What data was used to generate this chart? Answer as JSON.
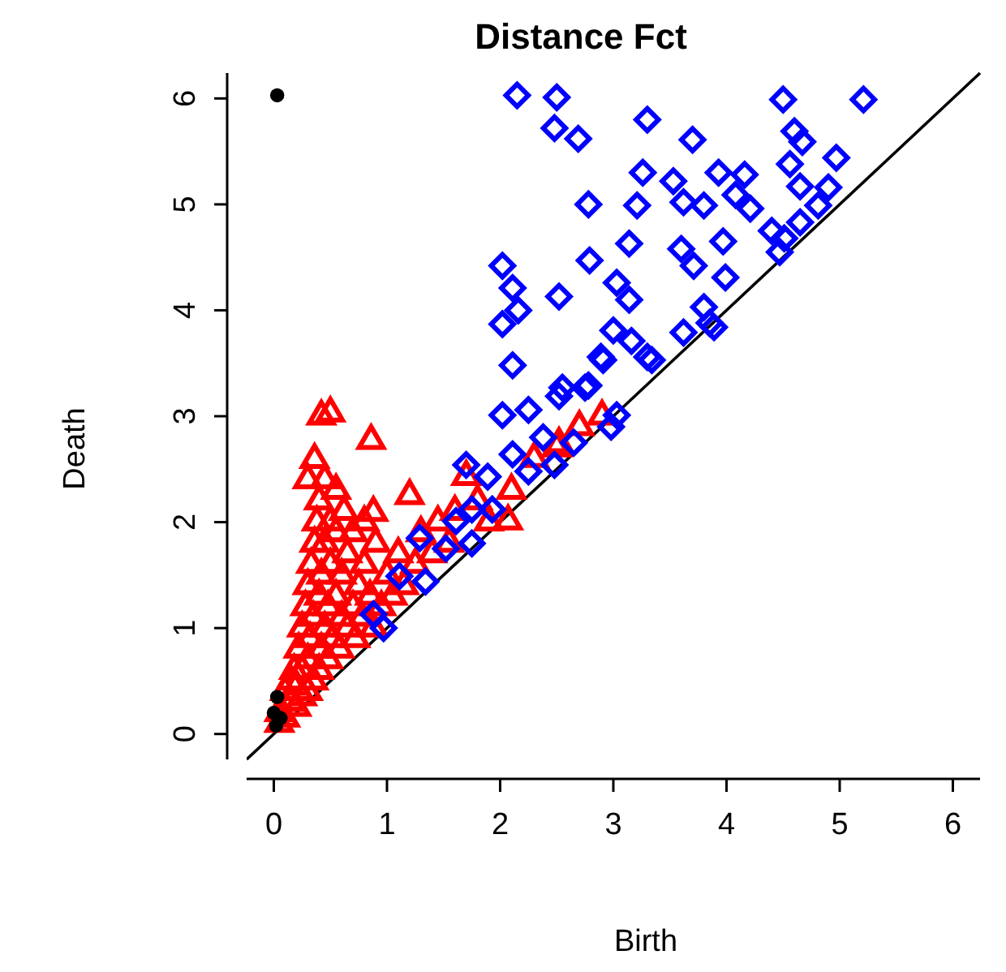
{
  "chart_data": {
    "type": "scatter",
    "title": "Distance Fct",
    "xlabel": "Birth",
    "ylabel": "Death",
    "xlim": [
      -0.24,
      6.24
    ],
    "ylim": [
      -0.24,
      6.24
    ],
    "xticks": [
      0,
      1,
      2,
      3,
      4,
      5,
      6
    ],
    "yticks": [
      0,
      1,
      2,
      3,
      4,
      5,
      6
    ],
    "grid": false,
    "series": [
      {
        "type": "line",
        "color": "#000000",
        "line_style": "solid",
        "x": [
          -0.24,
          6.24
        ],
        "values": [
          -0.24,
          6.24
        ]
      },
      {
        "color": "#ff0000",
        "marker": "triangle",
        "x": [
          0.05,
          0.05,
          0.1,
          0.1,
          0.15,
          0.15,
          0.18,
          0.2,
          0.2,
          0.22,
          0.25,
          0.25,
          0.25,
          0.28,
          0.3,
          0.3,
          0.3,
          0.32,
          0.33,
          0.35,
          0.35,
          0.36,
          0.38,
          0.4,
          0.4,
          0.4,
          0.42,
          0.42,
          0.45,
          0.45,
          0.45,
          0.48,
          0.48,
          0.5,
          0.5,
          0.52,
          0.55,
          0.55,
          0.58,
          0.6,
          0.6,
          0.62,
          0.65,
          0.65,
          0.7,
          0.7,
          0.72,
          0.75,
          0.78,
          0.8,
          0.8,
          0.85,
          0.88,
          0.9,
          0.95,
          1.0,
          1.05,
          1.1,
          1.15,
          1.25,
          1.3,
          1.4,
          1.45,
          1.55,
          1.6,
          1.8,
          1.9,
          2.1,
          2.3,
          2.5,
          2.7,
          2.9,
          0.3,
          0.55,
          0.42,
          0.5,
          0.86,
          0.36,
          1.7,
          1.2,
          0.88,
          2.07,
          2.52
        ],
        "values": [
          0.1,
          0.2,
          0.15,
          0.4,
          0.5,
          0.3,
          0.6,
          0.25,
          0.45,
          0.8,
          0.35,
          0.6,
          1.0,
          1.2,
          0.4,
          0.7,
          1.4,
          0.9,
          1.6,
          0.5,
          1.1,
          1.8,
          2.0,
          0.6,
          1.3,
          2.2,
          0.8,
          1.5,
          1.0,
          1.8,
          2.4,
          0.7,
          1.2,
          1.6,
          2.0,
          0.9,
          1.3,
          1.9,
          0.8,
          1.1,
          1.5,
          2.1,
          1.0,
          1.7,
          1.2,
          1.9,
          0.9,
          1.4,
          1.1,
          1.6,
          2.0,
          1.3,
          1.0,
          1.8,
          1.2,
          1.5,
          1.3,
          1.7,
          1.4,
          1.6,
          1.9,
          1.7,
          2.0,
          1.8,
          2.1,
          2.2,
          2.0,
          2.3,
          2.6,
          2.7,
          2.9,
          3.0,
          2.4,
          2.3,
          3.0,
          3.03,
          2.77,
          2.59,
          2.43,
          2.25,
          2.09,
          2.01,
          2.74
        ]
      },
      {
        "color": "#0000ff",
        "marker": "diamond",
        "x": [
          2.15,
          2.5,
          2.48,
          2.69,
          3.3,
          3.7,
          4.5,
          5.21,
          4.6,
          4.67,
          4.56,
          4.97,
          4.65,
          4.9,
          4.81,
          4.65,
          4.51,
          4.4,
          4.47,
          3.26,
          3.53,
          3.93,
          4.16,
          3.21,
          3.62,
          3.8,
          4.08,
          4.21,
          2.78,
          3.14,
          3.6,
          3.97,
          3.71,
          3.99,
          2.79,
          2.02,
          2.11,
          2.16,
          2.02,
          2.52,
          3.03,
          3.14,
          2.11,
          3.0,
          3.16,
          3.34,
          2.91,
          3.62,
          3.8,
          3.89,
          3.85,
          2.55,
          2.78,
          2.89,
          3.3,
          2.52,
          2.75,
          3.03,
          2.02,
          2.25,
          2.38,
          2.11,
          1.89,
          1.7,
          1.61,
          1.75,
          1.93,
          1.29,
          1.11,
          1.34,
          0.88,
          0.97,
          2.25,
          2.48,
          2.65,
          2.98,
          1.75,
          1.52
        ],
        "values": [
          6.03,
          6.01,
          5.72,
          5.62,
          5.8,
          5.61,
          5.99,
          5.99,
          5.69,
          5.59,
          5.38,
          5.44,
          5.17,
          5.16,
          4.99,
          4.83,
          4.68,
          4.75,
          4.55,
          5.3,
          5.22,
          5.3,
          5.28,
          4.99,
          5.02,
          4.99,
          5.09,
          4.96,
          5.0,
          4.63,
          4.58,
          4.65,
          4.42,
          4.31,
          4.47,
          4.42,
          4.21,
          4.0,
          3.87,
          4.13,
          4.26,
          4.1,
          3.48,
          3.81,
          3.71,
          3.53,
          3.53,
          3.79,
          4.03,
          3.84,
          3.88,
          3.27,
          3.29,
          3.56,
          3.56,
          3.19,
          3.27,
          3.01,
          3.01,
          3.06,
          2.8,
          2.64,
          2.43,
          2.54,
          2.01,
          2.12,
          2.12,
          1.85,
          1.49,
          1.44,
          1.13,
          1.0,
          2.48,
          2.54,
          2.75,
          2.9,
          1.8,
          1.75
        ]
      },
      {
        "color": "#000000",
        "marker": "circle",
        "x": [
          0.03,
          0.02,
          0,
          0.03,
          0.06
        ],
        "values": [
          6.03,
          0.08,
          0.2,
          0.35,
          0.15
        ]
      }
    ]
  }
}
